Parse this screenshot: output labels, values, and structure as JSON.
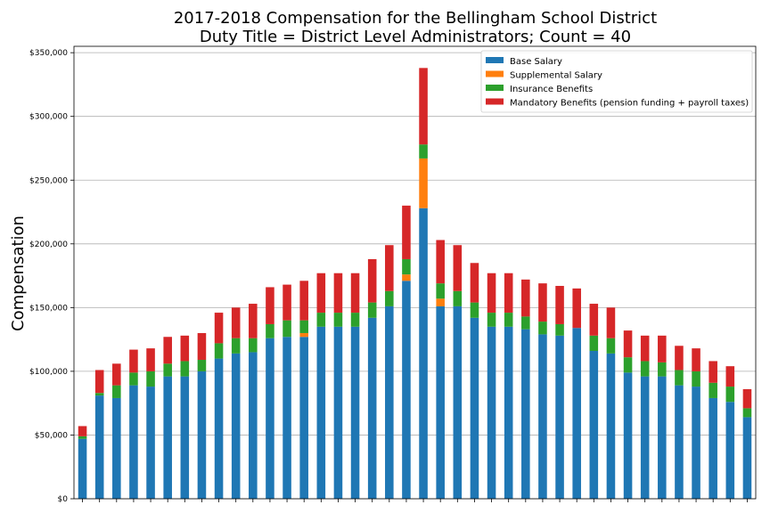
{
  "chart_data": {
    "type": "bar",
    "stacked": true,
    "title": "2017-2018 Compensation for the Bellingham School District",
    "subtitle": "Duty Title = District Level Administrators; Count = 40",
    "ylabel": "Compensation",
    "xlabel": "",
    "ylim": [
      0,
      355000
    ],
    "yticks": [
      0,
      50000,
      100000,
      150000,
      200000,
      250000,
      300000,
      350000
    ],
    "ytick_labels": [
      "$0",
      "$50,000",
      "$100,000",
      "$150,000",
      "$200,000",
      "$250,000",
      "$300,000",
      "$350,000"
    ],
    "grid": "horizontal",
    "legend_position": "top-right",
    "series": [
      {
        "name": "Base Salary",
        "color": "#1f77b4",
        "values": [
          47000,
          81000,
          79000,
          89000,
          88000,
          96000,
          96000,
          100000,
          110000,
          114000,
          115000,
          126000,
          127000,
          127000,
          135000,
          135000,
          135000,
          142000,
          151000,
          171000,
          228000,
          151000,
          151000,
          142000,
          135000,
          135000,
          133000,
          129000,
          128000,
          134000,
          116000,
          114000,
          99000,
          96000,
          96000,
          89000,
          88000,
          79000,
          76000,
          64000
        ]
      },
      {
        "name": "Supplemental Salary",
        "color": "#ff7f0e",
        "values": [
          0,
          0,
          0,
          0,
          0,
          0,
          0,
          0,
          0,
          0,
          0,
          0,
          0,
          3000,
          0,
          0,
          0,
          0,
          0,
          5000,
          39000,
          6000,
          0,
          0,
          0,
          0,
          0,
          0,
          0,
          0,
          0,
          0,
          0,
          0,
          0,
          0,
          0,
          0,
          0,
          0
        ]
      },
      {
        "name": "Insurance Benefits",
        "color": "#2ca02c",
        "values": [
          2000,
          2000,
          10000,
          10000,
          12000,
          10000,
          12000,
          9000,
          12000,
          12000,
          11000,
          11000,
          13000,
          10000,
          11000,
          11000,
          11000,
          12000,
          12000,
          12000,
          11000,
          12000,
          12000,
          12000,
          11000,
          11000,
          10000,
          10000,
          9000,
          0,
          12000,
          12000,
          12000,
          12000,
          11000,
          12000,
          12000,
          12000,
          12000,
          7000
        ]
      },
      {
        "name": "Mandatory Benefits (pension funding + payroll taxes)",
        "color": "#d62728",
        "values": [
          8000,
          18000,
          17000,
          18000,
          18000,
          21000,
          20000,
          21000,
          24000,
          24000,
          27000,
          29000,
          28000,
          31000,
          31000,
          31000,
          31000,
          34000,
          36000,
          42000,
          60000,
          34000,
          36000,
          31000,
          31000,
          31000,
          29000,
          30000,
          30000,
          31000,
          25000,
          24000,
          21000,
          20000,
          21000,
          19000,
          18000,
          17000,
          16000,
          15000
        ]
      }
    ]
  }
}
